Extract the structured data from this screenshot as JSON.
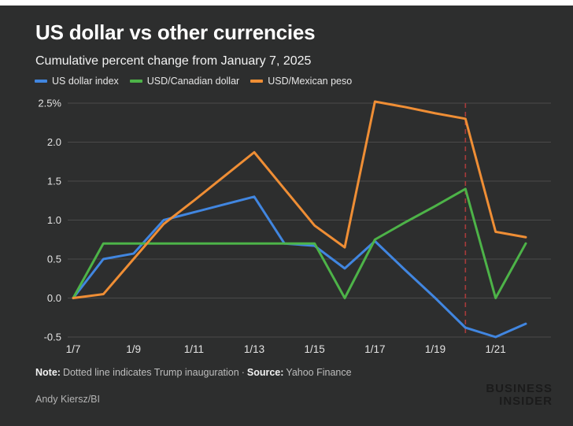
{
  "header": {
    "title": "US dollar vs other currencies",
    "subtitle": "Cumulative percent change from January 7, 2025"
  },
  "chart_data": {
    "type": "line",
    "x": [
      "1/7",
      "1/8",
      "1/9",
      "1/10",
      "1/11",
      "1/12",
      "1/13",
      "1/14",
      "1/15",
      "1/16",
      "1/17",
      "1/18",
      "1/19",
      "1/20",
      "1/21",
      "1/22"
    ],
    "x_tick_labels": [
      "1/7",
      "1/9",
      "1/11",
      "1/13",
      "1/15",
      "1/17",
      "1/19",
      "1/21"
    ],
    "series": [
      {
        "name": "US dollar index",
        "color": "#4186e0",
        "values": [
          0,
          0.5,
          0.57,
          1.0,
          1.1,
          1.2,
          1.3,
          0.7,
          0.67,
          0.38,
          0.73,
          0.36,
          0.0,
          -0.38,
          -0.5,
          -0.33
        ]
      },
      {
        "name": "USD/Canadian dollar",
        "color": "#4db348",
        "values": [
          0,
          0.7,
          0.7,
          0.7,
          0.7,
          0.7,
          0.7,
          0.7,
          0.7,
          0.0,
          0.75,
          0.97,
          1.18,
          1.4,
          0.0,
          0.7
        ]
      },
      {
        "name": "USD/Mexican peso",
        "color": "#ef8e35",
        "values": [
          0,
          0.05,
          0.5,
          0.95,
          1.25,
          1.56,
          1.87,
          1.4,
          0.93,
          0.65,
          2.52,
          2.45,
          2.37,
          2.3,
          0.85,
          0.78
        ]
      }
    ],
    "y_ticks": [
      "2.5%",
      "2.0",
      "1.5",
      "1.0",
      "0.5",
      "0.0",
      "-0.5"
    ],
    "y_tick_values": [
      2.5,
      2.0,
      1.5,
      1.0,
      0.5,
      0.0,
      -0.5
    ],
    "ylim": [
      -0.5,
      2.5
    ],
    "grid": true,
    "legend_position": "top",
    "annotation": {
      "label": "Trump inauguration",
      "x": "1/20",
      "color": "#a83a3a",
      "style": "dashed"
    },
    "grid_color": "#4a4a4a",
    "tick_label_color": "#e3e3e3"
  },
  "footer": {
    "note_label": "Note:",
    "note_text": "Dotted line indicates Trump inauguration",
    "separator": "·",
    "source_label": "Source:",
    "source_text": "Yahoo Finance",
    "credit": "Andy Kiersz/BI",
    "logo_line1": "BUSINESS",
    "logo_line2": "INSIDER"
  }
}
